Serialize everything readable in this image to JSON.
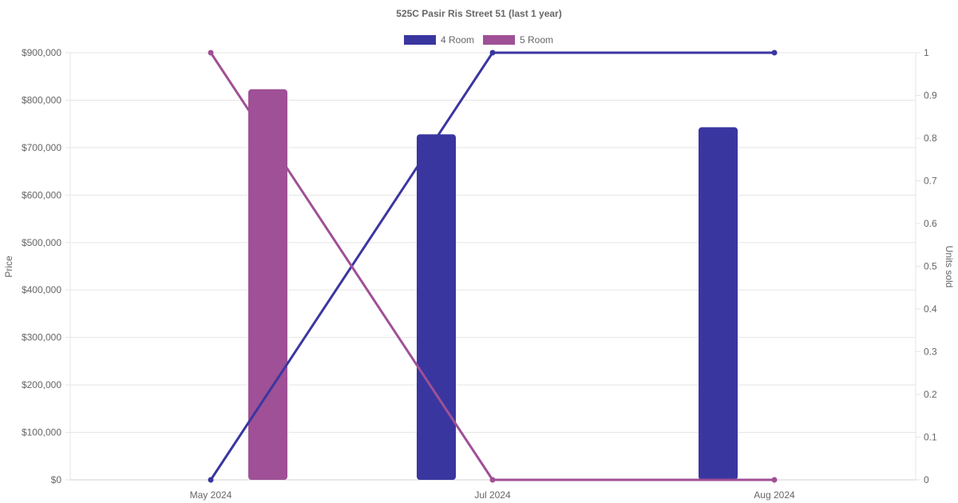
{
  "chart_data": {
    "type": "bar",
    "title": "525C Pasir Ris Street 51 (last 1 year)",
    "categories": [
      "May 2024",
      "Jul 2024",
      "Aug 2024"
    ],
    "y_left": {
      "label": "Price",
      "ylim": [
        0,
        900000
      ],
      "ticks": [
        0,
        100000,
        200000,
        300000,
        400000,
        500000,
        600000,
        700000,
        800000,
        900000
      ],
      "tick_labels": [
        "$0",
        "$100,000",
        "$200,000",
        "$300,000",
        "$400,000",
        "$500,000",
        "$600,000",
        "$700,000",
        "$800,000",
        "$900,000"
      ]
    },
    "y_right": {
      "label": "Units sold",
      "ylim": [
        0,
        1
      ],
      "ticks": [
        0,
        0.1,
        0.2,
        0.3,
        0.4,
        0.5,
        0.6,
        0.7,
        0.8,
        0.9,
        1
      ],
      "tick_labels": [
        "0",
        "0.1",
        "0.2",
        "0.3",
        "0.4",
        "0.5",
        "0.6",
        "0.7",
        "0.8",
        "0.9",
        "1"
      ]
    },
    "series": [
      {
        "name": "4 Room",
        "color": "#3a36a0",
        "price": [
          null,
          728000,
          743000
        ],
        "units_sold": [
          0,
          1,
          1
        ]
      },
      {
        "name": "5 Room",
        "color": "#9f5096",
        "price": [
          823000,
          null,
          null
        ],
        "units_sold": [
          1,
          0,
          0
        ]
      }
    ],
    "grid": true,
    "legend": "top-center"
  }
}
